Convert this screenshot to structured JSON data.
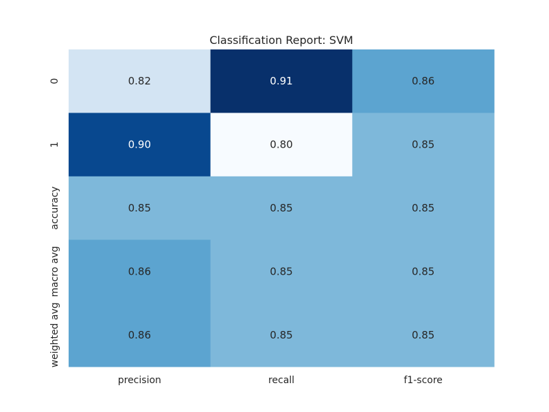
{
  "chart_data": {
    "type": "heatmap",
    "title": "Classification Report: SVM",
    "xlabel": "",
    "ylabel": "",
    "x_categories": [
      "precision",
      "recall",
      "f1-score"
    ],
    "y_categories": [
      "0",
      "1",
      "accuracy",
      "macro avg",
      "weighted avg"
    ],
    "values": [
      [
        0.82,
        0.91,
        0.86
      ],
      [
        0.9,
        0.8,
        0.85
      ],
      [
        0.85,
        0.85,
        0.85
      ],
      [
        0.86,
        0.85,
        0.85
      ],
      [
        0.86,
        0.85,
        0.85
      ]
    ],
    "value_labels": [
      [
        "0.82",
        "0.91",
        "0.86"
      ],
      [
        "0.90",
        "0.80",
        "0.85"
      ],
      [
        "0.85",
        "0.85",
        "0.85"
      ],
      [
        "0.86",
        "0.85",
        "0.85"
      ],
      [
        "0.86",
        "0.85",
        "0.85"
      ]
    ],
    "colormap": "Blues",
    "colorbar": false,
    "grid": false
  }
}
